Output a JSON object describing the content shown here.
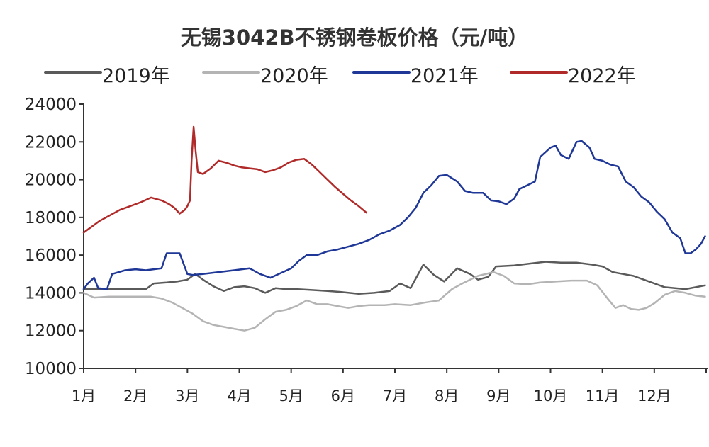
{
  "chart_data": {
    "type": "line",
    "title": "无锡3042B不锈钢卷板价格（元/吨）",
    "xlabel": "",
    "ylabel": "",
    "ylim": [
      10000,
      24000
    ],
    "yticks": [
      "24000",
      "22000",
      "20000",
      "18000",
      "16000",
      "14000",
      "12000",
      "10000"
    ],
    "categories": [
      "1月",
      "2月",
      "3月",
      "4月",
      "5月",
      "6月",
      "7月",
      "8月",
      "9月",
      "10月",
      "11月",
      "12月"
    ],
    "legend_position": "top",
    "grid": false,
    "series": [
      {
        "name": "2019年",
        "color": "#5a5a5a",
        "points": [
          [
            0,
            14200
          ],
          [
            0.1,
            14200
          ],
          [
            0.4,
            14200
          ],
          [
            0.8,
            14200
          ],
          [
            1.2,
            14200
          ],
          [
            1.35,
            14500
          ],
          [
            1.6,
            14550
          ],
          [
            1.8,
            14600
          ],
          [
            2.0,
            14700
          ],
          [
            2.15,
            15000
          ],
          [
            2.3,
            14700
          ],
          [
            2.5,
            14350
          ],
          [
            2.7,
            14100
          ],
          [
            2.9,
            14300
          ],
          [
            3.1,
            14350
          ],
          [
            3.3,
            14250
          ],
          [
            3.5,
            14000
          ],
          [
            3.7,
            14250
          ],
          [
            3.9,
            14200
          ],
          [
            4.1,
            14200
          ],
          [
            4.4,
            14150
          ],
          [
            4.7,
            14100
          ],
          [
            4.95,
            14050
          ],
          [
            5.3,
            13950
          ],
          [
            5.6,
            14000
          ],
          [
            5.9,
            14100
          ],
          [
            6.1,
            14500
          ],
          [
            6.3,
            14250
          ],
          [
            6.55,
            15500
          ],
          [
            6.75,
            14950
          ],
          [
            6.95,
            14600
          ],
          [
            7.2,
            15300
          ],
          [
            7.45,
            15000
          ],
          [
            7.6,
            14700
          ],
          [
            7.8,
            14850
          ],
          [
            7.95,
            15400
          ],
          [
            8.3,
            15450
          ],
          [
            8.6,
            15550
          ],
          [
            8.9,
            15650
          ],
          [
            9.2,
            15600
          ],
          [
            9.5,
            15600
          ],
          [
            9.8,
            15500
          ],
          [
            10.0,
            15400
          ],
          [
            10.2,
            15100
          ],
          [
            10.4,
            15000
          ],
          [
            10.6,
            14900
          ],
          [
            10.8,
            14700
          ],
          [
            11.0,
            14500
          ],
          [
            11.2,
            14300
          ],
          [
            11.4,
            14250
          ],
          [
            11.6,
            14200
          ],
          [
            11.8,
            14300
          ],
          [
            11.98,
            14400
          ]
        ]
      },
      {
        "name": "2020年",
        "color": "#b4b4b4",
        "points": [
          [
            0,
            14000
          ],
          [
            0.2,
            13750
          ],
          [
            0.5,
            13800
          ],
          [
            1.0,
            13800
          ],
          [
            1.3,
            13800
          ],
          [
            1.5,
            13700
          ],
          [
            1.7,
            13500
          ],
          [
            1.9,
            13200
          ],
          [
            2.1,
            12900
          ],
          [
            2.3,
            12500
          ],
          [
            2.5,
            12300
          ],
          [
            2.7,
            12200
          ],
          [
            2.9,
            12100
          ],
          [
            3.1,
            12000
          ],
          [
            3.3,
            12150
          ],
          [
            3.5,
            12600
          ],
          [
            3.7,
            13000
          ],
          [
            3.9,
            13100
          ],
          [
            4.1,
            13300
          ],
          [
            4.3,
            13600
          ],
          [
            4.5,
            13400
          ],
          [
            4.7,
            13400
          ],
          [
            4.9,
            13300
          ],
          [
            5.1,
            13200
          ],
          [
            5.3,
            13300
          ],
          [
            5.5,
            13350
          ],
          [
            5.8,
            13350
          ],
          [
            6.0,
            13400
          ],
          [
            6.3,
            13350
          ],
          [
            6.6,
            13500
          ],
          [
            6.85,
            13600
          ],
          [
            7.1,
            14200
          ],
          [
            7.3,
            14500
          ],
          [
            7.6,
            14900
          ],
          [
            7.9,
            15100
          ],
          [
            8.1,
            14900
          ],
          [
            8.3,
            14500
          ],
          [
            8.55,
            14450
          ],
          [
            8.8,
            14550
          ],
          [
            9.1,
            14600
          ],
          [
            9.4,
            14650
          ],
          [
            9.7,
            14650
          ],
          [
            9.9,
            14400
          ],
          [
            10.1,
            13700
          ],
          [
            10.25,
            13200
          ],
          [
            10.4,
            13350
          ],
          [
            10.55,
            13150
          ],
          [
            10.7,
            13100
          ],
          [
            10.85,
            13200
          ],
          [
            11.0,
            13450
          ],
          [
            11.2,
            13900
          ],
          [
            11.4,
            14100
          ],
          [
            11.6,
            14000
          ],
          [
            11.8,
            13850
          ],
          [
            11.98,
            13800
          ]
        ]
      },
      {
        "name": "2021年",
        "color": "#1f3796",
        "points": [
          [
            0,
            14200
          ],
          [
            0.08,
            14500
          ],
          [
            0.2,
            14800
          ],
          [
            0.28,
            14250
          ],
          [
            0.45,
            14200
          ],
          [
            0.55,
            15000
          ],
          [
            0.8,
            15200
          ],
          [
            1.0,
            15250
          ],
          [
            1.2,
            15200
          ],
          [
            1.5,
            15300
          ],
          [
            1.6,
            16100
          ],
          [
            1.85,
            16100
          ],
          [
            2.0,
            15000
          ],
          [
            2.1,
            14950
          ],
          [
            2.3,
            15000
          ],
          [
            2.6,
            15100
          ],
          [
            2.9,
            15200
          ],
          [
            3.2,
            15300
          ],
          [
            3.4,
            15000
          ],
          [
            3.6,
            14800
          ],
          [
            3.8,
            15050
          ],
          [
            4.0,
            15300
          ],
          [
            4.15,
            15700
          ],
          [
            4.3,
            16000
          ],
          [
            4.5,
            16000
          ],
          [
            4.7,
            16200
          ],
          [
            4.9,
            16300
          ],
          [
            5.1,
            16450
          ],
          [
            5.3,
            16600
          ],
          [
            5.5,
            16800
          ],
          [
            5.7,
            17100
          ],
          [
            5.9,
            17300
          ],
          [
            6.1,
            17600
          ],
          [
            6.25,
            18000
          ],
          [
            6.4,
            18500
          ],
          [
            6.55,
            19300
          ],
          [
            6.7,
            19700
          ],
          [
            6.85,
            20200
          ],
          [
            7.0,
            20250
          ],
          [
            7.2,
            19900
          ],
          [
            7.35,
            19400
          ],
          [
            7.5,
            19300
          ],
          [
            7.7,
            19300
          ],
          [
            7.85,
            18900
          ],
          [
            8.0,
            18850
          ],
          [
            8.15,
            18700
          ],
          [
            8.3,
            19000
          ],
          [
            8.4,
            19500
          ],
          [
            8.55,
            19700
          ],
          [
            8.7,
            19900
          ],
          [
            8.8,
            21200
          ],
          [
            9.0,
            21700
          ],
          [
            9.1,
            21800
          ],
          [
            9.2,
            21300
          ],
          [
            9.35,
            21100
          ],
          [
            9.5,
            22000
          ],
          [
            9.6,
            22050
          ],
          [
            9.75,
            21700
          ],
          [
            9.85,
            21100
          ],
          [
            10.0,
            21000
          ],
          [
            10.15,
            20800
          ],
          [
            10.3,
            20700
          ],
          [
            10.45,
            19900
          ],
          [
            10.6,
            19600
          ],
          [
            10.75,
            19100
          ],
          [
            10.9,
            18800
          ],
          [
            11.05,
            18300
          ],
          [
            11.2,
            17900
          ],
          [
            11.35,
            17200
          ],
          [
            11.5,
            16900
          ],
          [
            11.6,
            16100
          ],
          [
            11.7,
            16100
          ],
          [
            11.8,
            16300
          ],
          [
            11.9,
            16600
          ],
          [
            11.98,
            17000
          ]
        ]
      },
      {
        "name": "2022年",
        "color": "#b02a2a",
        "points": [
          [
            0,
            17200
          ],
          [
            0.15,
            17500
          ],
          [
            0.3,
            17800
          ],
          [
            0.5,
            18100
          ],
          [
            0.7,
            18400
          ],
          [
            0.9,
            18600
          ],
          [
            1.1,
            18800
          ],
          [
            1.3,
            19050
          ],
          [
            1.5,
            18900
          ],
          [
            1.65,
            18700
          ],
          [
            1.75,
            18500
          ],
          [
            1.85,
            18200
          ],
          [
            1.95,
            18400
          ],
          [
            2.0,
            18600
          ],
          [
            2.05,
            18900
          ],
          [
            2.08,
            21000
          ],
          [
            2.12,
            22800
          ],
          [
            2.16,
            21500
          ],
          [
            2.2,
            20400
          ],
          [
            2.3,
            20300
          ],
          [
            2.45,
            20600
          ],
          [
            2.6,
            21000
          ],
          [
            2.75,
            20900
          ],
          [
            2.9,
            20750
          ],
          [
            3.05,
            20650
          ],
          [
            3.2,
            20600
          ],
          [
            3.35,
            20550
          ],
          [
            3.5,
            20400
          ],
          [
            3.65,
            20500
          ],
          [
            3.8,
            20650
          ],
          [
            3.95,
            20900
          ],
          [
            4.1,
            21050
          ],
          [
            4.25,
            21100
          ],
          [
            4.4,
            20800
          ],
          [
            4.55,
            20400
          ],
          [
            4.7,
            20000
          ],
          [
            4.85,
            19600
          ],
          [
            5.0,
            19250
          ],
          [
            5.15,
            18900
          ],
          [
            5.3,
            18600
          ],
          [
            5.45,
            18250
          ]
        ]
      }
    ]
  }
}
